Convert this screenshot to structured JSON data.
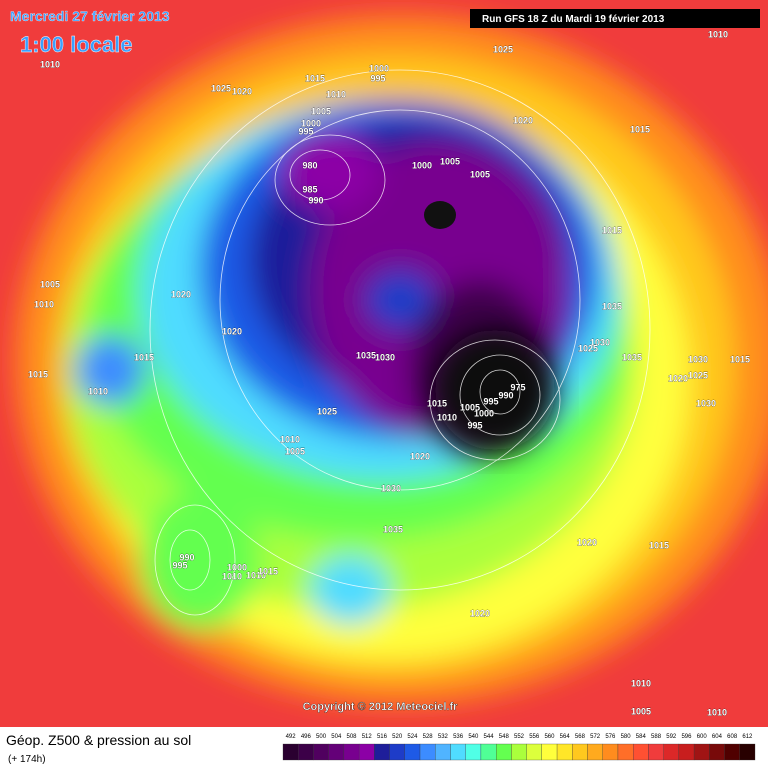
{
  "header": {
    "date": "Mercredi 27 février 2013",
    "time": "1:00 locale",
    "run": "Run GFS 18 Z du Mardi 19 février 2013"
  },
  "map": {
    "pressure_labels": [
      1010,
      1025,
      1010,
      1015,
      1025,
      1020,
      1000,
      995,
      1010,
      1005,
      1000,
      995,
      980,
      985,
      990,
      1020,
      1015,
      1000,
      1005,
      1005,
      1015,
      1005,
      1010,
      1020,
      1020,
      1035,
      1030,
      1025,
      1035,
      1030,
      1015,
      1015,
      1015,
      1010,
      1035,
      1030,
      1020,
      1025,
      1030,
      1015,
      1010,
      1005,
      1000,
      995,
      990,
      975,
      995,
      1025,
      1010,
      1005,
      1020,
      1030,
      1035,
      1020,
      1015,
      990,
      995,
      1000,
      1010,
      1015,
      1020,
      1010,
      1010,
      1005,
      1010
    ]
  },
  "copyright": "Copyright © 2012 Meteociel.fr",
  "legend": {
    "title": "Géop. Z500 & pression au sol",
    "lead": "(+ 174h)",
    "scale": [
      492,
      496,
      500,
      504,
      508,
      512,
      516,
      520,
      524,
      528,
      532,
      536,
      540,
      544,
      548,
      552,
      556,
      560,
      564,
      568,
      572,
      576,
      580,
      584,
      588,
      592,
      596,
      600,
      604,
      608,
      612
    ],
    "colors": [
      "#2a0030",
      "#3c0048",
      "#50005f",
      "#640078",
      "#78008f",
      "#8c00a6",
      "#1e1e9a",
      "#1e3cc8",
      "#1e5ae6",
      "#3c8cff",
      "#50b4ff",
      "#50dcff",
      "#50ffe6",
      "#50ff96",
      "#64ff50",
      "#aaff3c",
      "#dcff3c",
      "#ffff3c",
      "#ffe628",
      "#ffc81e",
      "#ffaa1e",
      "#ff8c1e",
      "#ff6e28",
      "#ff5032",
      "#f03c3c",
      "#dc2828",
      "#c81e1e",
      "#a01414",
      "#780a0a",
      "#500000",
      "#280000"
    ]
  }
}
